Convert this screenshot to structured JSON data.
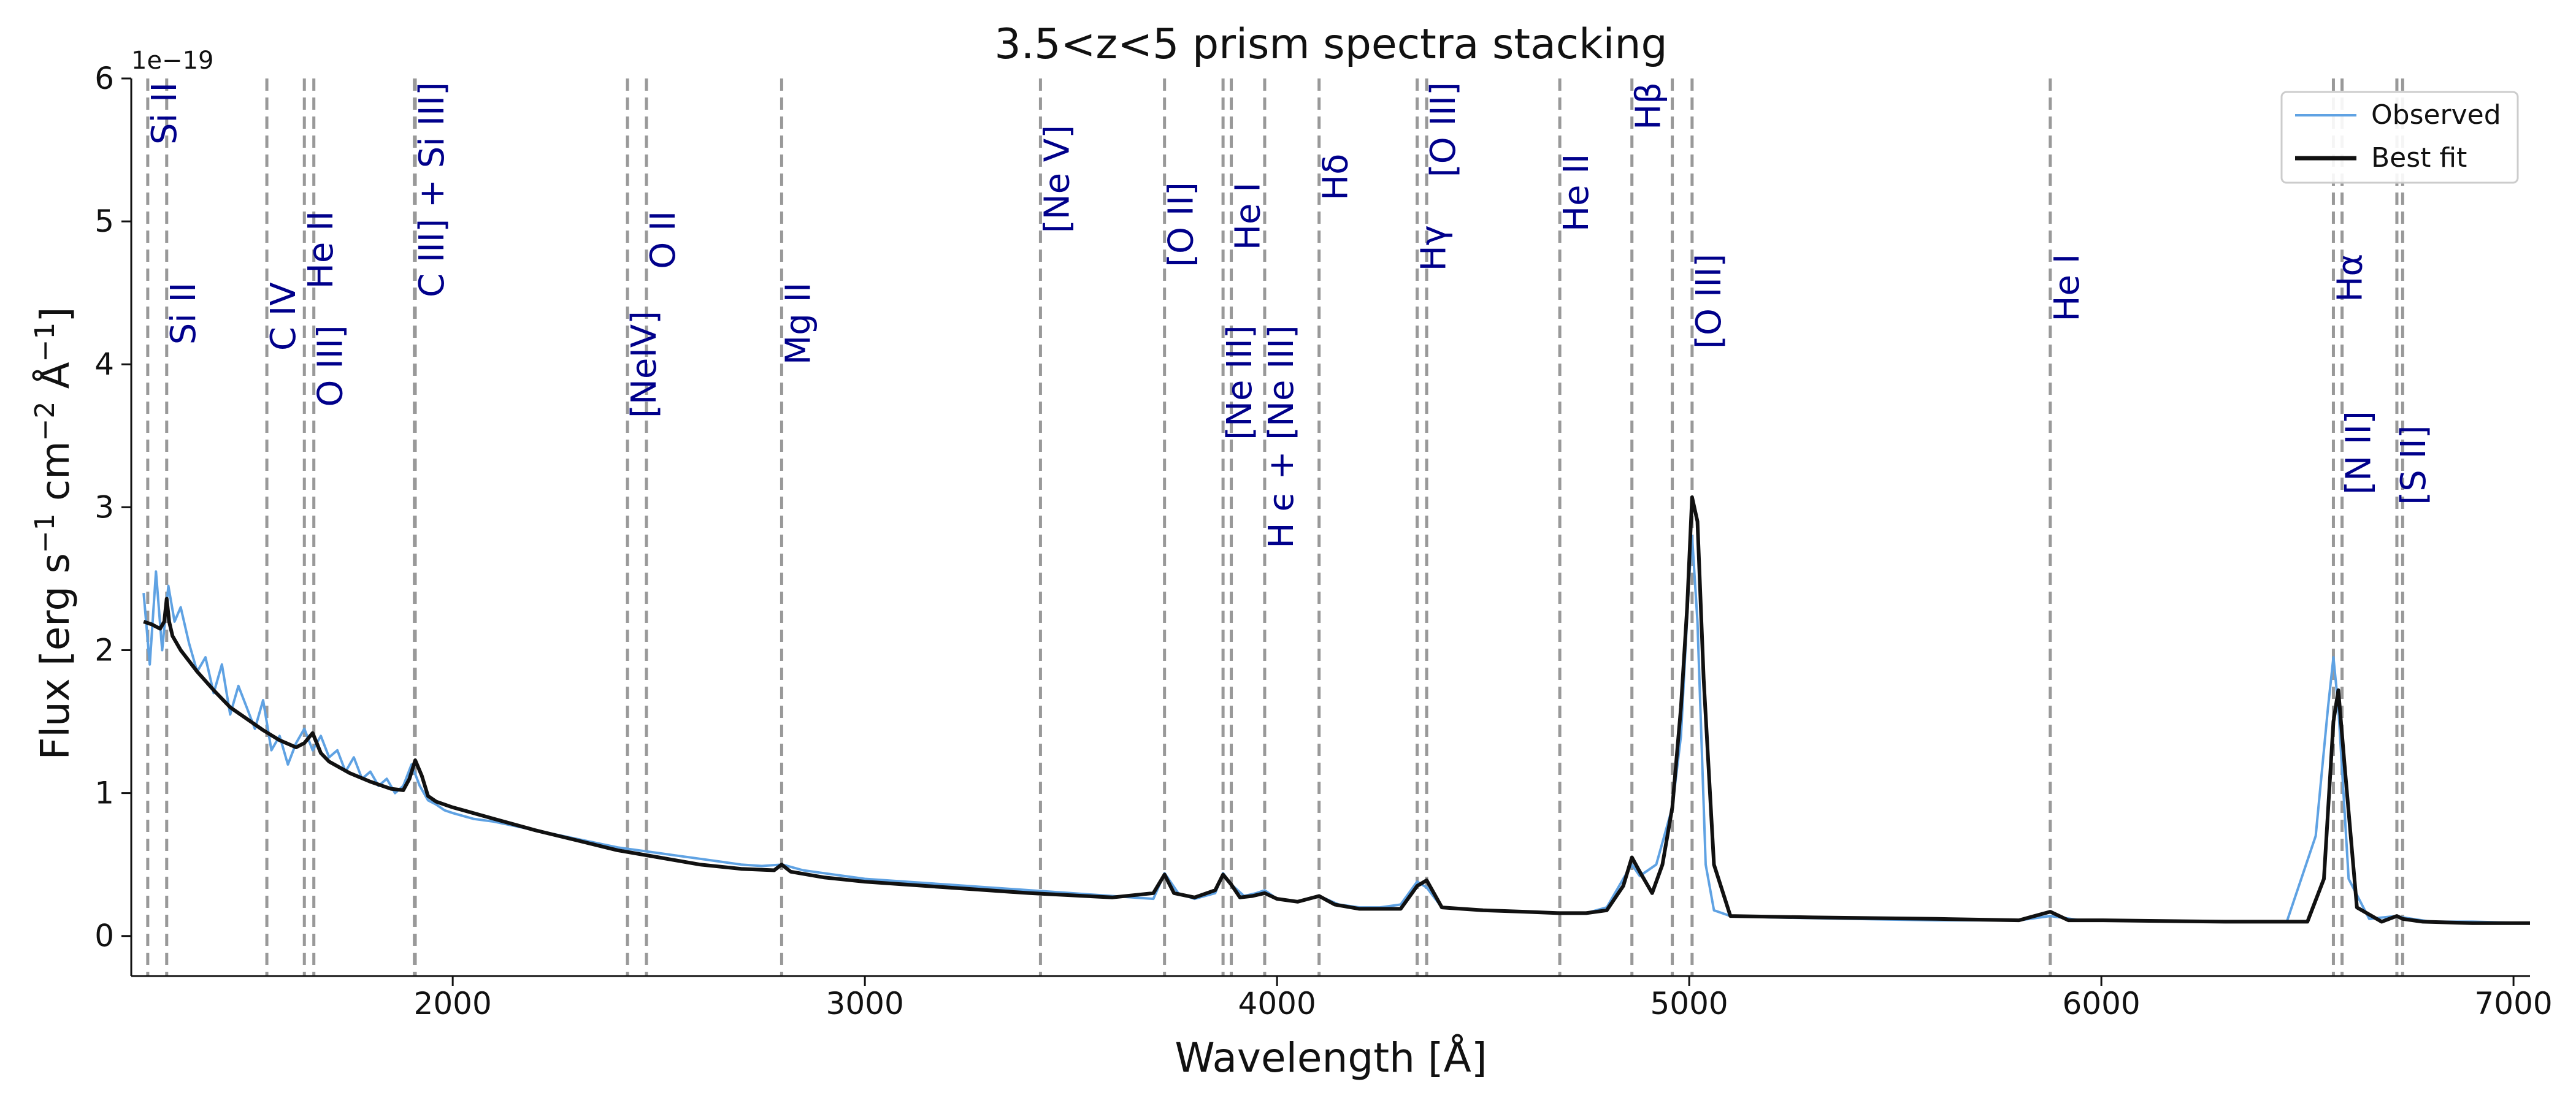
{
  "chart_data": {
    "type": "line",
    "title": "3.5<z<5 prism spectra stacking",
    "xlabel": "Wavelength [Å]",
    "ylabel_main": "Flux  [erg s",
    "ylabel_sup1": "−1",
    "ylabel_mid1": " cm",
    "ylabel_sup2": "−2",
    "ylabel_mid2": " Å",
    "ylabel_sup3": "−1",
    "ylabel_end": "]",
    "y_offset_text": "1e−19",
    "xlim": [
      1220,
      7040
    ],
    "ylim": [
      -0.28,
      6.0
    ],
    "x_ticks": [
      2000,
      3000,
      4000,
      5000,
      6000,
      7000
    ],
    "x_tick_labels": [
      "2000",
      "3000",
      "4000",
      "5000",
      "6000",
      "7000"
    ],
    "y_ticks": [
      0,
      1,
      2,
      3,
      4,
      5,
      6
    ],
    "y_tick_labels": [
      "0",
      "1",
      "2",
      "3",
      "4",
      "5",
      "6"
    ],
    "grid": false,
    "legend_position": "top-right",
    "legend": [
      {
        "label": "Observed",
        "color": "#5fa2e3"
      },
      {
        "label": "Best fit",
        "color": "#111111"
      }
    ],
    "colors": {
      "observed": "#5fa2e3",
      "fit": "#111111",
      "line_marker": "#999999",
      "line_label": "#00008b"
    },
    "emission_lines": [
      {
        "label": "Si II",
        "wavelength": 1260,
        "label_y": 6.0
      },
      {
        "label": "Si II",
        "wavelength": 1306,
        "label_y": 4.6
      },
      {
        "label": "C IV",
        "wavelength": 1549,
        "label_y": 4.6
      },
      {
        "label": "He II",
        "wavelength": 1640,
        "label_y": 5.1
      },
      {
        "label": "O III]",
        "wavelength": 1663,
        "label_y": 4.3
      },
      {
        "label": "C III] + Si III]",
        "wavelength": 1909,
        "label_y": 6.0
      },
      {
        "label": "C III]",
        "wavelength": 1907,
        "label_y": null
      },
      {
        "label": "[NeIV]",
        "wavelength": 2424,
        "label_y": 4.4
      },
      {
        "label": "O II",
        "wavelength": 2470,
        "label_y": 5.1
      },
      {
        "label": "Mg II",
        "wavelength": 2798,
        "label_y": 4.6
      },
      {
        "label": "[Ne V]",
        "wavelength": 3426,
        "label_y": 5.7
      },
      {
        "label": "[O II]",
        "wavelength": 3727,
        "label_y": 5.3
      },
      {
        "label": "[Ne III]",
        "wavelength": 3869,
        "label_y": 4.3
      },
      {
        "label": "He I",
        "wavelength": 3889,
        "label_y": 5.3
      },
      {
        "label": "H ϵ + [Ne III]",
        "wavelength": 3970,
        "label_y": 4.3
      },
      {
        "label": "Hδ",
        "wavelength": 4102,
        "label_y": 5.5
      },
      {
        "label": "Hγ",
        "wavelength": 4340,
        "label_y": 5.0
      },
      {
        "label": "[O III]",
        "wavelength": 4363,
        "label_y": 6.0
      },
      {
        "label": "He II",
        "wavelength": 4686,
        "label_y": 5.5
      },
      {
        "label": "Hβ",
        "wavelength": 4861,
        "label_y": 6.0
      },
      {
        "label": "[O III]",
        "wavelength": 4959,
        "label_y": null
      },
      {
        "label": "[O III]",
        "wavelength": 5007,
        "label_y": 4.8
      },
      {
        "label": "He I",
        "wavelength": 5876,
        "label_y": 4.8
      },
      {
        "label": "Hα",
        "wavelength": 6563,
        "label_y": 4.8
      },
      {
        "label": "[N II]",
        "wavelength": 6584,
        "label_y": 3.7
      },
      {
        "label": "[S II]",
        "wavelength": 6717,
        "label_y": 3.6
      },
      {
        "label": "[S II]",
        "wavelength": 6731,
        "label_y": null
      }
    ],
    "series": [
      {
        "name": "Observed",
        "x": [
          1250,
          1265,
          1280,
          1295,
          1310,
          1325,
          1340,
          1360,
          1380,
          1400,
          1420,
          1440,
          1460,
          1480,
          1500,
          1520,
          1540,
          1560,
          1580,
          1600,
          1620,
          1640,
          1660,
          1680,
          1700,
          1720,
          1740,
          1760,
          1780,
          1800,
          1820,
          1840,
          1860,
          1880,
          1900,
          1920,
          1940,
          1960,
          1980,
          2000,
          2050,
          2100,
          2150,
          2200,
          2250,
          2300,
          2350,
          2400,
          2450,
          2500,
          2550,
          2600,
          2650,
          2700,
          2750,
          2800,
          2850,
          2900,
          2950,
          3000,
          3100,
          3200,
          3300,
          3400,
          3500,
          3600,
          3700,
          3727,
          3760,
          3800,
          3850,
          3869,
          3889,
          3920,
          3950,
          3970,
          4000,
          4050,
          4102,
          4150,
          4200,
          4250,
          4300,
          4340,
          4363,
          4400,
          4450,
          4500,
          4600,
          4686,
          4750,
          4800,
          4840,
          4861,
          4880,
          4920,
          4959,
          4980,
          5000,
          5007,
          5020,
          5040,
          5060,
          5100,
          5200,
          5400,
          5600,
          5800,
          5876,
          5950,
          6100,
          6300,
          6450,
          6520,
          6550,
          6563,
          6575,
          6600,
          6650,
          6717,
          6731,
          6800,
          6900,
          7040
        ],
        "y": [
          2.4,
          1.9,
          2.55,
          2.0,
          2.45,
          2.2,
          2.3,
          2.05,
          1.85,
          1.95,
          1.7,
          1.9,
          1.55,
          1.75,
          1.6,
          1.45,
          1.65,
          1.3,
          1.4,
          1.2,
          1.35,
          1.45,
          1.3,
          1.4,
          1.25,
          1.3,
          1.15,
          1.25,
          1.1,
          1.15,
          1.05,
          1.1,
          1.0,
          1.05,
          1.2,
          1.05,
          0.95,
          0.92,
          0.88,
          0.86,
          0.82,
          0.8,
          0.77,
          0.74,
          0.71,
          0.68,
          0.65,
          0.62,
          0.6,
          0.58,
          0.56,
          0.54,
          0.52,
          0.5,
          0.49,
          0.5,
          0.46,
          0.44,
          0.42,
          0.4,
          0.38,
          0.36,
          0.34,
          0.32,
          0.3,
          0.28,
          0.26,
          0.44,
          0.3,
          0.26,
          0.3,
          0.44,
          0.36,
          0.28,
          0.3,
          0.32,
          0.26,
          0.24,
          0.28,
          0.22,
          0.2,
          0.2,
          0.22,
          0.38,
          0.34,
          0.2,
          0.19,
          0.18,
          0.17,
          0.16,
          0.16,
          0.2,
          0.4,
          0.5,
          0.42,
          0.5,
          0.9,
          1.4,
          2.5,
          2.8,
          2.2,
          0.5,
          0.18,
          0.14,
          0.13,
          0.12,
          0.11,
          0.11,
          0.14,
          0.11,
          0.11,
          0.1,
          0.1,
          0.7,
          1.6,
          1.95,
          1.6,
          0.4,
          0.12,
          0.14,
          0.13,
          0.1,
          0.1,
          0.09
        ]
      },
      {
        "name": "Best fit",
        "x": [
          1250,
          1270,
          1290,
          1300,
          1306,
          1312,
          1320,
          1340,
          1380,
          1420,
          1460,
          1500,
          1540,
          1580,
          1620,
          1640,
          1660,
          1680,
          1700,
          1750,
          1800,
          1850,
          1880,
          1895,
          1909,
          1925,
          1940,
          1960,
          2000,
          2100,
          2200,
          2300,
          2400,
          2500,
          2600,
          2700,
          2780,
          2798,
          2820,
          2900,
          3000,
          3200,
          3400,
          3600,
          3700,
          3727,
          3750,
          3800,
          3850,
          3869,
          3889,
          3910,
          3940,
          3970,
          4000,
          4050,
          4102,
          4140,
          4200,
          4300,
          4340,
          4363,
          4400,
          4500,
          4600,
          4686,
          4750,
          4800,
          4840,
          4861,
          4880,
          4910,
          4935,
          4959,
          4980,
          4995,
          5007,
          5020,
          5035,
          5060,
          5100,
          5300,
          5600,
          5800,
          5876,
          5920,
          6000,
          6300,
          6500,
          6540,
          6563,
          6575,
          6590,
          6620,
          6680,
          6717,
          6731,
          6780,
          6900,
          7040
        ],
        "y": [
          2.2,
          2.18,
          2.15,
          2.2,
          2.36,
          2.2,
          2.1,
          2.0,
          1.85,
          1.72,
          1.6,
          1.52,
          1.44,
          1.37,
          1.32,
          1.35,
          1.42,
          1.28,
          1.22,
          1.14,
          1.08,
          1.03,
          1.02,
          1.1,
          1.23,
          1.12,
          0.98,
          0.94,
          0.9,
          0.82,
          0.74,
          0.67,
          0.6,
          0.55,
          0.5,
          0.47,
          0.46,
          0.5,
          0.45,
          0.41,
          0.38,
          0.34,
          0.3,
          0.27,
          0.3,
          0.43,
          0.3,
          0.27,
          0.32,
          0.43,
          0.36,
          0.27,
          0.28,
          0.3,
          0.26,
          0.24,
          0.28,
          0.22,
          0.19,
          0.19,
          0.35,
          0.39,
          0.2,
          0.18,
          0.17,
          0.16,
          0.16,
          0.18,
          0.35,
          0.55,
          0.45,
          0.3,
          0.5,
          0.9,
          1.6,
          2.3,
          3.07,
          2.9,
          1.8,
          0.5,
          0.14,
          0.13,
          0.12,
          0.11,
          0.17,
          0.11,
          0.11,
          0.1,
          0.1,
          0.4,
          1.5,
          1.72,
          1.2,
          0.2,
          0.1,
          0.14,
          0.12,
          0.1,
          0.09,
          0.09
        ]
      }
    ]
  }
}
